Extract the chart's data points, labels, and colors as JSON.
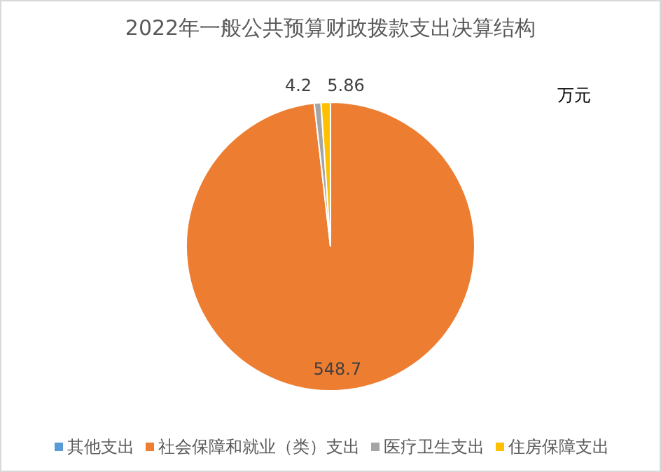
{
  "chart_data": {
    "type": "pie",
    "title": "2022年一般公共预算财政拨款支出决算结构",
    "annotations": [
      "万元"
    ],
    "categories": [
      "其他支出",
      "社会保障和就业（类）支出",
      "医疗卫生支出",
      "住房保障支出"
    ],
    "values": [
      0,
      548.7,
      4.2,
      5.86
    ],
    "colors": [
      "#5b9bd5",
      "#ed7d31",
      "#a5a5a5",
      "#ffc000"
    ],
    "value_labels": [
      null,
      "548.7",
      "4.2",
      "5.86"
    ],
    "legend": "bottom"
  }
}
